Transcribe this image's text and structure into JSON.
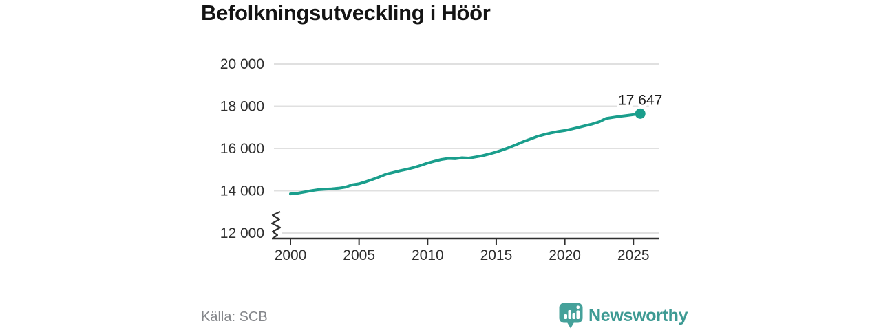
{
  "title": "Befolkningsutveckling i Höör",
  "source": "Källa: SCB",
  "brand": {
    "name": "Newsworthy",
    "icon": "bar-chart-speech-bubble-with-exclamation"
  },
  "colors": {
    "line": "#1a9e8c",
    "brand_icon": "#45a19a",
    "brand_text": "#3d9a93",
    "grid": "#e0e0e0",
    "axis": "#2f2f2f",
    "tick_label": "#2f2f2f",
    "title": "#141414",
    "source_text": "#85878b",
    "data_label": "#1a1a1a",
    "background": "#ffffff"
  },
  "chart_data": {
    "type": "line",
    "title": "Befolkningsutveckling i Höör",
    "xlabel": "",
    "ylabel": "",
    "grid": "horizontal",
    "legend": "none",
    "axis_break": true,
    "xlim": [
      1998.8,
      2026.8
    ],
    "ylim": [
      12000,
      20400
    ],
    "x_ticks": [
      2000,
      2005,
      2010,
      2015,
      2020,
      2025
    ],
    "x_tick_labels": [
      "2000",
      "2005",
      "2010",
      "2015",
      "2020",
      "2025"
    ],
    "y_ticks": [
      12000,
      14000,
      16000,
      18000,
      20000
    ],
    "y_tick_labels": [
      "12 000",
      "14 000",
      "16 000",
      "18 000",
      "20 000"
    ],
    "end_label": "17 647",
    "end_value": 17647,
    "points": [
      [
        2000.0,
        13850
      ],
      [
        2000.5,
        13880
      ],
      [
        2001.0,
        13940
      ],
      [
        2001.5,
        14000
      ],
      [
        2002.0,
        14050
      ],
      [
        2002.5,
        14075
      ],
      [
        2003.0,
        14090
      ],
      [
        2003.5,
        14120
      ],
      [
        2004.0,
        14170
      ],
      [
        2004.5,
        14280
      ],
      [
        2005.0,
        14330
      ],
      [
        2005.5,
        14430
      ],
      [
        2006.0,
        14540
      ],
      [
        2006.5,
        14660
      ],
      [
        2007.0,
        14790
      ],
      [
        2007.5,
        14870
      ],
      [
        2008.0,
        14950
      ],
      [
        2008.5,
        15020
      ],
      [
        2009.0,
        15100
      ],
      [
        2009.5,
        15200
      ],
      [
        2010.0,
        15310
      ],
      [
        2010.5,
        15400
      ],
      [
        2011.0,
        15480
      ],
      [
        2011.5,
        15530
      ],
      [
        2012.0,
        15515
      ],
      [
        2012.5,
        15560
      ],
      [
        2013.0,
        15545
      ],
      [
        2013.5,
        15600
      ],
      [
        2014.0,
        15660
      ],
      [
        2014.5,
        15740
      ],
      [
        2015.0,
        15830
      ],
      [
        2015.5,
        15940
      ],
      [
        2016.0,
        16060
      ],
      [
        2016.5,
        16190
      ],
      [
        2017.0,
        16330
      ],
      [
        2017.5,
        16450
      ],
      [
        2018.0,
        16570
      ],
      [
        2018.5,
        16660
      ],
      [
        2019.0,
        16740
      ],
      [
        2019.5,
        16800
      ],
      [
        2020.0,
        16850
      ],
      [
        2020.5,
        16920
      ],
      [
        2021.0,
        17000
      ],
      [
        2021.5,
        17080
      ],
      [
        2022.0,
        17160
      ],
      [
        2022.5,
        17260
      ],
      [
        2023.0,
        17420
      ],
      [
        2023.5,
        17470
      ],
      [
        2024.0,
        17520
      ],
      [
        2024.5,
        17560
      ],
      [
        2025.0,
        17600
      ],
      [
        2025.5,
        17647
      ]
    ]
  }
}
